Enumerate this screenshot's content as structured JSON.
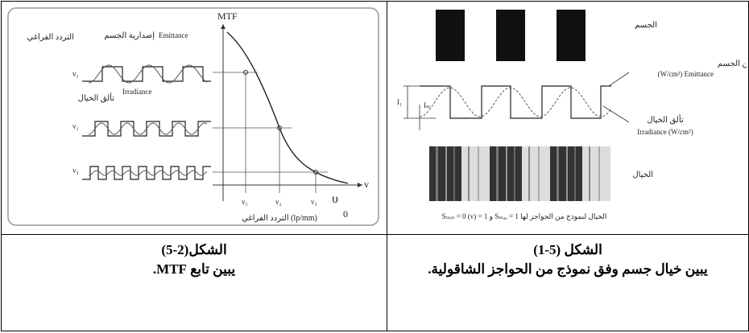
{
  "figure_left": {
    "labels": {
      "mtf": "MTF",
      "emittance": "Emittance",
      "emittance_ar": "إصدارية الجسم",
      "freq_ar": "التردد الفراغي",
      "irradiance": "Irradiance",
      "irradiance_ar": "تألق الخيال",
      "v1": "v₁",
      "v2": "v₂",
      "v3": "v₃",
      "axis_v": "v",
      "tick_v1": "v₁",
      "tick_v2": "v₂",
      "tick_v3": "v₃",
      "upsilon0": "υ",
      "zero": "0",
      "x_axis": "التردد الفراغي (lp/mm)"
    },
    "caption": "الشكل(2-5)",
    "description": "يبين تابع MTF."
  },
  "figure_right": {
    "labels": {
      "object": "الجسم",
      "emittance_ar": "الاصدارية الناتجة عن الجسم",
      "emittance": "(W/cm²) Emittance",
      "irradiance_ar": "تألق الخيال",
      "irradiance": "Irradiance (W/cm²)",
      "i1": "I₁",
      "imin": "Iₘ",
      "image": "الخيال",
      "bottom_note": "Sₘᵢₙ = 0 (v) = 1 و Sₘₐₓ = 1 الخيال لنموذج من الحواجز لها"
    },
    "caption": "الشكل (5-1)",
    "description": "يبين خيال جسم وفق نموذج من الحواجز الشاقولية."
  }
}
